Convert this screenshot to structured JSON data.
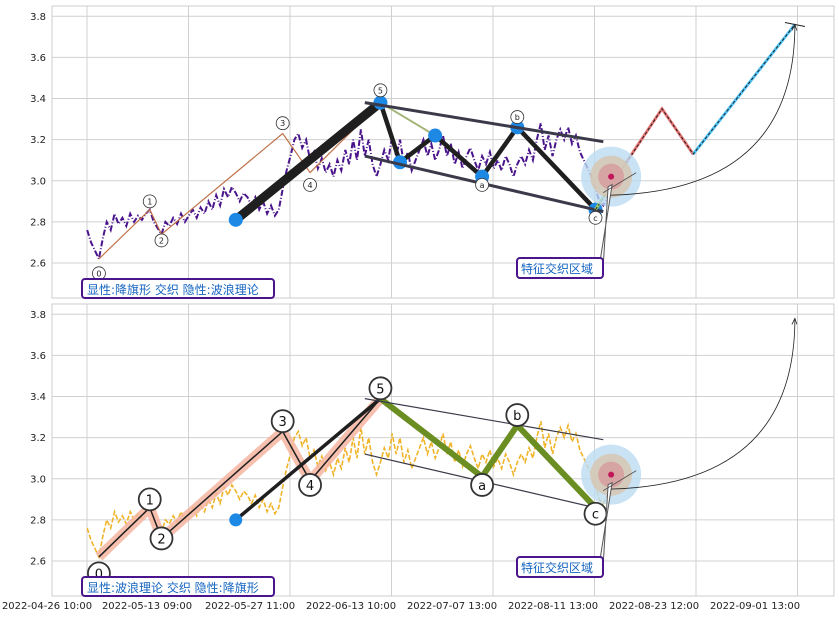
{
  "colors": {
    "price_top": "#4a148c",
    "price_bottom": "#f0b429",
    "impulse": "#1f1f1f",
    "correction_top": "#1f1f1f",
    "correction_bottom": "#6b8e23",
    "marker": "#1e88e5",
    "channel": "#3a3a4a",
    "wave_thin": "#c0724a",
    "wave_highlight": "#f4b4a0",
    "proj_up": "#e57373",
    "proj_up2": "#4fc3f7",
    "proj_mid": "#9ccc65"
  },
  "chart_data": {
    "type": "line",
    "x_tick_labels": [
      "2022-04-26 10:00",
      "2022-05-13 09:00",
      "2022-05-27 11:00",
      "2022-06-13 10:00",
      "2022-07-07 13:00",
      "2022-08-11 13:00",
      "2022-08-23 12:00",
      "2022-09-01 13:00"
    ],
    "y_ticks": [
      2.6,
      2.8,
      3.0,
      3.2,
      3.4,
      3.6,
      3.8
    ],
    "ylim": [
      2.43,
      3.85
    ],
    "x_range": [
      0,
      100
    ],
    "price_series": [
      [
        4.5,
        2.76
      ],
      [
        5,
        2.7
      ],
      [
        5.5,
        2.66
      ],
      [
        6,
        2.62
      ],
      [
        6.5,
        2.72
      ],
      [
        7,
        2.8
      ],
      [
        7.5,
        2.76
      ],
      [
        8,
        2.84
      ],
      [
        8.5,
        2.79
      ],
      [
        9,
        2.82
      ],
      [
        9.5,
        2.78
      ],
      [
        10,
        2.84
      ],
      [
        10.5,
        2.8
      ],
      [
        11,
        2.83
      ],
      [
        11.5,
        2.81
      ],
      [
        12,
        2.84
      ],
      [
        12.5,
        2.86
      ],
      [
        13,
        2.8
      ],
      [
        13.5,
        2.77
      ],
      [
        14,
        2.74
      ],
      [
        14.5,
        2.8
      ],
      [
        15,
        2.78
      ],
      [
        15.5,
        2.82
      ],
      [
        16,
        2.79
      ],
      [
        16.5,
        2.84
      ],
      [
        17,
        2.8
      ],
      [
        17.5,
        2.83
      ],
      [
        18,
        2.86
      ],
      [
        18.5,
        2.82
      ],
      [
        19,
        2.87
      ],
      [
        19.5,
        2.84
      ],
      [
        20,
        2.9
      ],
      [
        20.5,
        2.86
      ],
      [
        21,
        2.93
      ],
      [
        21.5,
        2.88
      ],
      [
        22,
        2.96
      ],
      [
        22.5,
        2.92
      ],
      [
        23,
        2.97
      ],
      [
        23.5,
        2.94
      ],
      [
        24,
        2.9
      ],
      [
        24.5,
        2.94
      ],
      [
        25,
        2.92
      ],
      [
        25.5,
        2.88
      ],
      [
        26,
        2.92
      ],
      [
        26.5,
        2.86
      ],
      [
        27,
        2.9
      ],
      [
        27.5,
        2.84
      ],
      [
        28,
        2.88
      ],
      [
        28.5,
        2.83
      ],
      [
        29,
        2.86
      ],
      [
        29.5,
        2.96
      ],
      [
        30,
        3.05
      ],
      [
        30.5,
        3.12
      ],
      [
        31,
        3.2
      ],
      [
        31.5,
        3.23
      ],
      [
        32,
        3.16
      ],
      [
        32.5,
        3.2
      ],
      [
        33,
        3.1
      ],
      [
        33.5,
        3.14
      ],
      [
        34,
        3.06
      ],
      [
        34.5,
        3.11
      ],
      [
        35,
        3.04
      ],
      [
        35.5,
        3.08
      ],
      [
        36,
        3.02
      ],
      [
        36.5,
        3.1
      ],
      [
        37,
        3.05
      ],
      [
        37.5,
        3.15
      ],
      [
        38,
        3.08
      ],
      [
        38.5,
        3.2
      ],
      [
        39,
        3.1
      ],
      [
        39.5,
        3.25
      ],
      [
        40,
        3.12
      ],
      [
        40.5,
        3.2
      ],
      [
        41,
        3.08
      ],
      [
        41.5,
        3.02
      ],
      [
        42,
        3.08
      ],
      [
        42.5,
        3.15
      ],
      [
        43,
        3.1
      ],
      [
        43.5,
        3.22
      ],
      [
        44,
        3.12
      ],
      [
        44.5,
        3.2
      ],
      [
        45,
        3.08
      ],
      [
        45.5,
        3.14
      ],
      [
        46,
        3.05
      ],
      [
        46.5,
        3.1
      ],
      [
        47,
        3.15
      ],
      [
        47.5,
        3.2
      ],
      [
        48,
        3.12
      ],
      [
        48.5,
        3.18
      ],
      [
        49,
        3.1
      ],
      [
        49.5,
        3.15
      ],
      [
        50,
        3.22
      ],
      [
        50.5,
        3.12
      ],
      [
        51,
        3.18
      ],
      [
        51.5,
        3.08
      ],
      [
        52,
        3.14
      ],
      [
        52.5,
        3.06
      ],
      [
        53,
        3.12
      ],
      [
        53.5,
        3.16
      ],
      [
        54,
        3.1
      ],
      [
        54.5,
        3.05
      ],
      [
        55,
        3.12
      ],
      [
        55.5,
        3.08
      ],
      [
        56,
        3.14
      ],
      [
        56.5,
        3.06
      ],
      [
        57,
        3.1
      ],
      [
        57.5,
        3.05
      ],
      [
        58,
        3.12
      ],
      [
        58.5,
        3.08
      ],
      [
        59,
        3.02
      ],
      [
        59.5,
        3.08
      ],
      [
        60,
        3.12
      ],
      [
        60.5,
        3.08
      ],
      [
        61,
        3.15
      ],
      [
        61.5,
        3.1
      ],
      [
        62,
        3.2
      ],
      [
        62.5,
        3.28
      ],
      [
        63,
        3.15
      ],
      [
        63.5,
        3.22
      ],
      [
        64,
        3.12
      ],
      [
        64.5,
        3.2
      ],
      [
        65,
        3.25
      ],
      [
        65.5,
        3.2
      ],
      [
        66,
        3.26
      ],
      [
        66.5,
        3.18
      ],
      [
        67,
        3.22
      ],
      [
        67.5,
        3.14
      ],
      [
        68,
        3.1
      ],
      [
        68.5,
        3.06
      ],
      [
        69,
        3.02
      ],
      [
        69.5,
        2.96
      ],
      [
        70,
        2.9
      ],
      [
        70.5,
        2.88
      ],
      [
        71,
        2.92
      ],
      [
        71.5,
        2.96
      ]
    ],
    "top": {
      "legend": "显性:降旗形 交织 隐性:波浪理论",
      "thin_wave": [
        [
          6,
          2.62
        ],
        [
          12.5,
          2.86
        ],
        [
          14,
          2.74
        ],
        [
          29.5,
          3.23
        ],
        [
          33,
          3.04
        ],
        [
          42,
          3.38
        ]
      ],
      "impulse": [
        [
          23.5,
          2.81
        ],
        [
          42,
          3.38
        ]
      ],
      "correction": [
        [
          42,
          3.38
        ],
        [
          44.5,
          3.09
        ],
        [
          49,
          3.22
        ],
        [
          55,
          3.02
        ],
        [
          59.5,
          3.26
        ],
        [
          69.5,
          2.86
        ]
      ],
      "markers": [
        [
          23.5,
          2.81
        ],
        [
          42,
          3.38
        ],
        [
          44.5,
          3.09
        ],
        [
          49,
          3.22
        ],
        [
          55,
          3.02
        ],
        [
          59.5,
          3.26
        ],
        [
          69.5,
          2.86
        ]
      ],
      "labels": [
        {
          "t": "0",
          "x": 6,
          "y": 2.55
        },
        {
          "t": "1",
          "x": 12.5,
          "y": 2.9
        },
        {
          "t": "2",
          "x": 14,
          "y": 2.71
        },
        {
          "t": "3",
          "x": 29.5,
          "y": 3.28
        },
        {
          "t": "4",
          "x": 33,
          "y": 2.98
        },
        {
          "t": "5",
          "x": 42,
          "y": 3.44
        },
        {
          "t": "a",
          "x": 55,
          "y": 2.98
        },
        {
          "t": "b",
          "x": 59.5,
          "y": 3.31
        },
        {
          "t": "c",
          "x": 69.5,
          "y": 2.82
        }
      ],
      "channel_upper": [
        [
          40,
          3.38
        ],
        [
          70.5,
          3.19
        ]
      ],
      "channel_lower": [
        [
          40,
          3.12
        ],
        [
          70.5,
          2.85
        ]
      ],
      "projection": [
        [
          69.5,
          2.86
        ],
        [
          78,
          3.35
        ],
        [
          82,
          3.13
        ],
        [
          95,
          3.76
        ]
      ],
      "arc": [
        [
          71.5,
          2.93
        ],
        [
          95,
          3.76
        ]
      ]
    },
    "bottom": {
      "legend": "显性:波浪理论 交织 隐性:降旗形",
      "wave": [
        [
          6,
          2.62
        ],
        [
          12.5,
          2.86
        ],
        [
          14,
          2.71
        ],
        [
          29.5,
          3.23
        ],
        [
          33,
          2.99
        ],
        [
          42,
          3.39
        ]
      ],
      "impulse": [
        [
          23.5,
          2.8
        ],
        [
          42,
          3.39
        ]
      ],
      "correction": [
        [
          42,
          3.39
        ],
        [
          55,
          3.01
        ],
        [
          59.5,
          3.26
        ],
        [
          69.5,
          2.86
        ]
      ],
      "labels": [
        {
          "t": "0",
          "x": 6,
          "y": 2.54
        },
        {
          "t": "1",
          "x": 12.5,
          "y": 2.9
        },
        {
          "t": "2",
          "x": 14,
          "y": 2.71
        },
        {
          "t": "3",
          "x": 29.5,
          "y": 3.28
        },
        {
          "t": "4",
          "x": 33,
          "y": 2.97
        },
        {
          "t": "5",
          "x": 42,
          "y": 3.44
        },
        {
          "t": "a",
          "x": 55,
          "y": 2.97
        },
        {
          "t": "b",
          "x": 59.5,
          "y": 3.31
        },
        {
          "t": "c",
          "x": 69.5,
          "y": 2.83
        }
      ],
      "channel_upper": [
        [
          40,
          3.39
        ],
        [
          70.5,
          3.19
        ]
      ],
      "channel_lower": [
        [
          40,
          3.12
        ],
        [
          70.5,
          2.85
        ]
      ],
      "arc": [
        [
          71.5,
          2.95
        ],
        [
          95,
          3.78
        ]
      ]
    },
    "zone_label": "特征交织区域",
    "zone_center": [
      71.5,
      3.02
    ]
  },
  "panels": [
    {
      "legend": "显性:降旗形 交织 隐性:波浪理论",
      "zone_label": "特征交织区域"
    },
    {
      "legend": "显性:波浪理论 交织 隐性:降旗形",
      "zone_label": "特征交织区域"
    }
  ]
}
